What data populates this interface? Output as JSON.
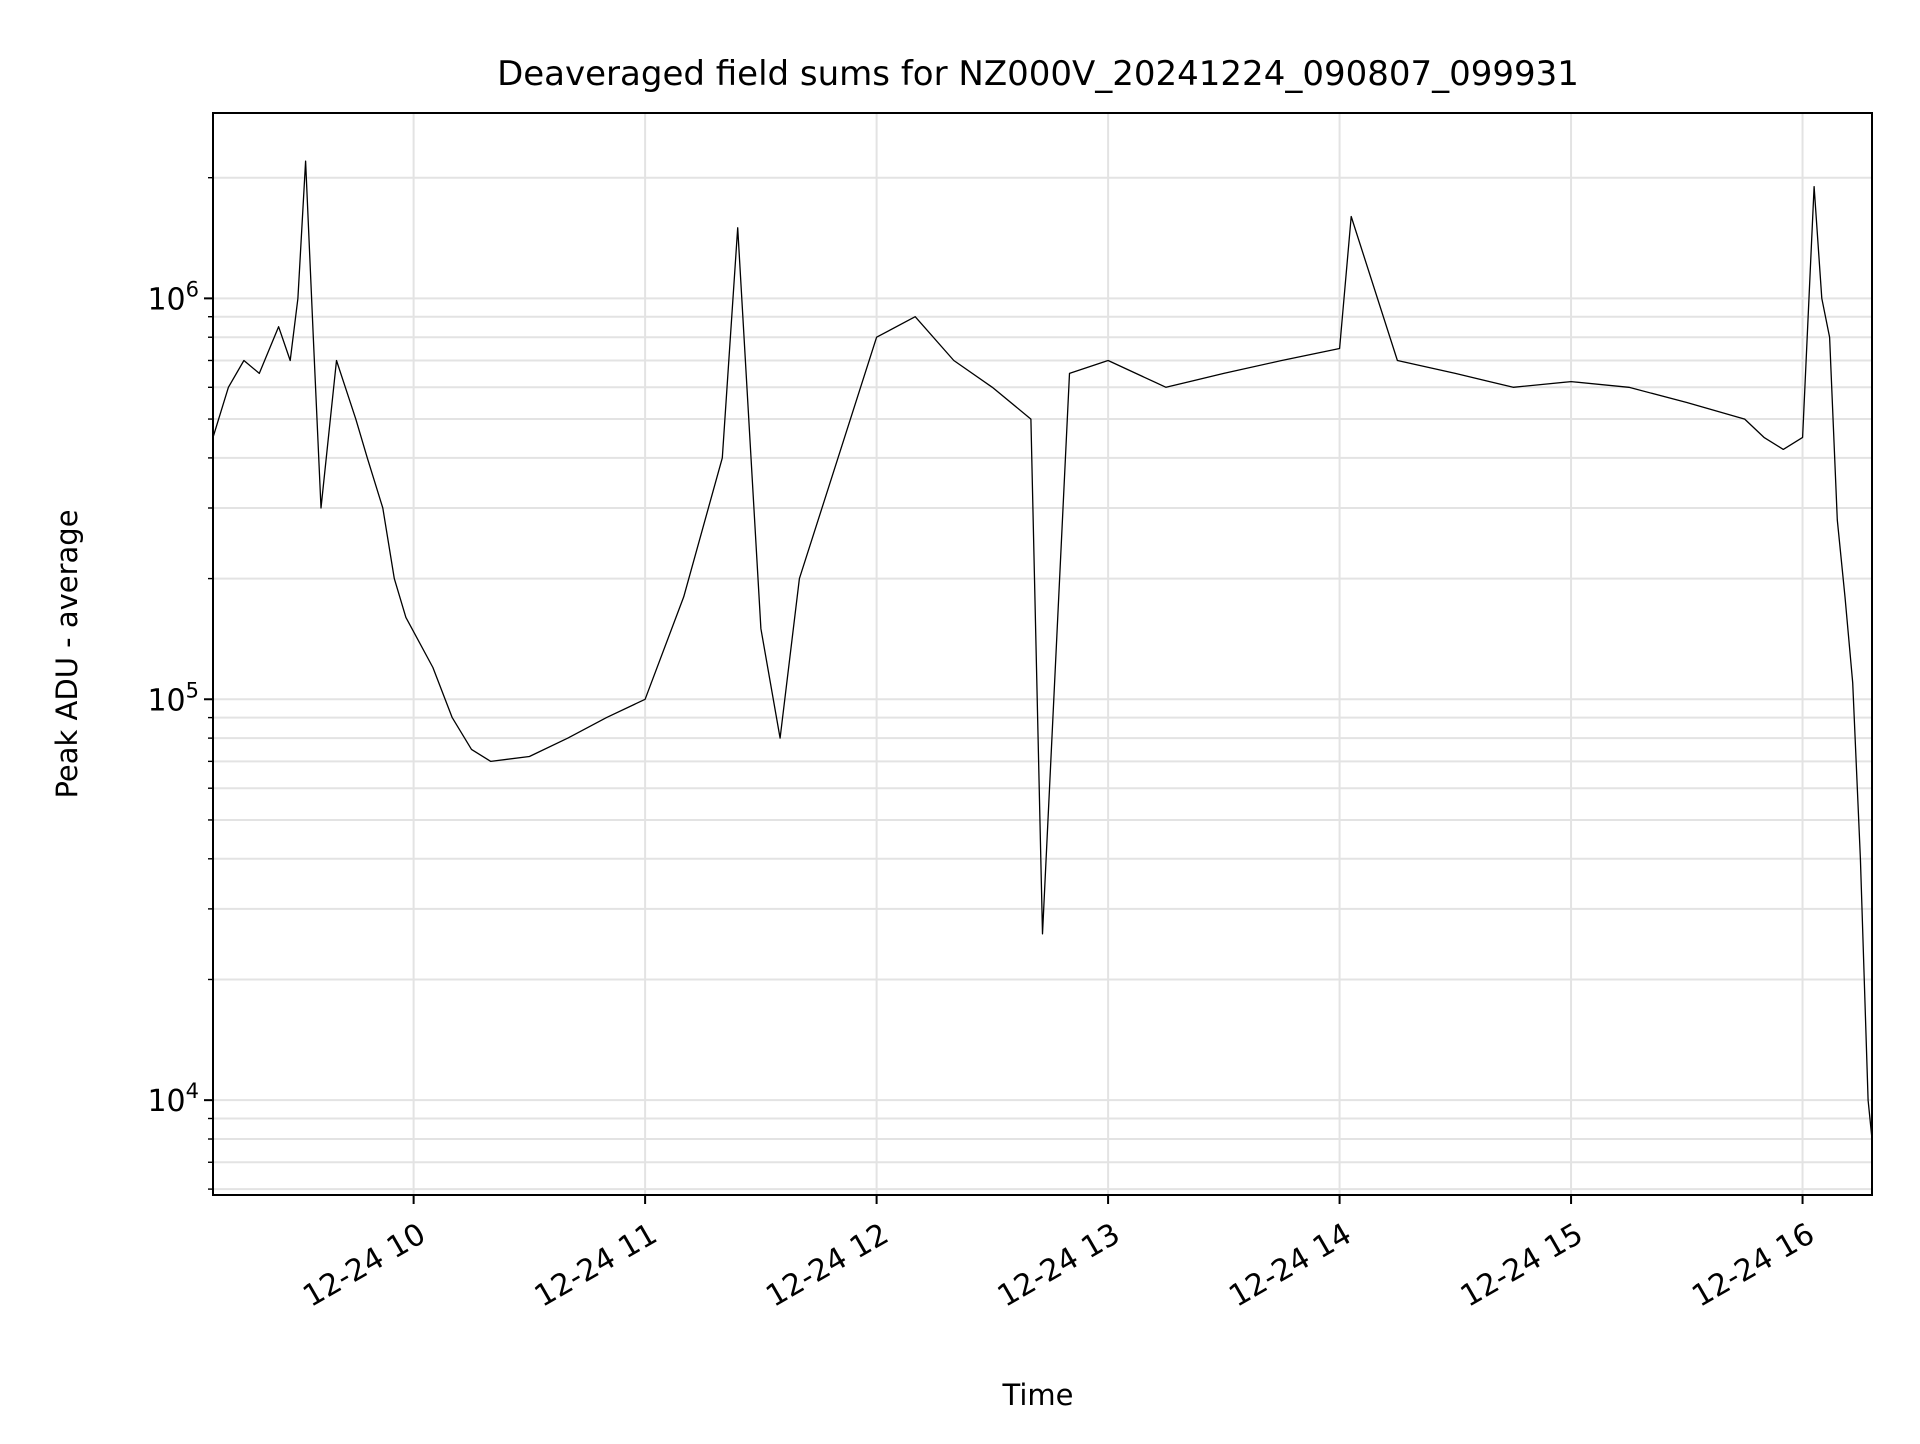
{
  "chart_data": {
    "type": "line",
    "title": "Deaveraged field sums for NZ000V_20241224_090807_099931",
    "xlabel": "Time",
    "ylabel": "Peak ADU - average",
    "yscale": "log",
    "ylim": [
      5800,
      2900000
    ],
    "xlim": [
      "2024-12-24 09:08",
      "2024-12-24 16:18"
    ],
    "grid": true,
    "line_color": "#000000",
    "x_ticks": [
      {
        "value": "2024-12-24 10:00",
        "label": "12-24 10"
      },
      {
        "value": "2024-12-24 11:00",
        "label": "12-24 11"
      },
      {
        "value": "2024-12-24 12:00",
        "label": "12-24 12"
      },
      {
        "value": "2024-12-24 13:00",
        "label": "12-24 13"
      },
      {
        "value": "2024-12-24 14:00",
        "label": "12-24 14"
      },
      {
        "value": "2024-12-24 15:00",
        "label": "12-24 15"
      },
      {
        "value": "2024-12-24 16:00",
        "label": "12-24 16"
      }
    ],
    "y_ticks": [
      {
        "value": 10000,
        "base": "10",
        "exp": "4"
      },
      {
        "value": 100000,
        "base": "10",
        "exp": "5"
      },
      {
        "value": 1000000,
        "base": "10",
        "exp": "6"
      }
    ],
    "series": [
      {
        "x": [
          "2024-12-24 09:08",
          "2024-12-24 09:12",
          "2024-12-24 09:16",
          "2024-12-24 09:20",
          "2024-12-24 09:25",
          "2024-12-24 09:28",
          "2024-12-24 09:30",
          "2024-12-24 09:32",
          "2024-12-24 09:34",
          "2024-12-24 09:36",
          "2024-12-24 09:40",
          "2024-12-24 09:45",
          "2024-12-24 09:48",
          "2024-12-24 09:52",
          "2024-12-24 09:55",
          "2024-12-24 09:58",
          "2024-12-24 10:05",
          "2024-12-24 10:10",
          "2024-12-24 10:15",
          "2024-12-24 10:20",
          "2024-12-24 10:30",
          "2024-12-24 10:40",
          "2024-12-24 10:50",
          "2024-12-24 11:00",
          "2024-12-24 11:10",
          "2024-12-24 11:20",
          "2024-12-24 11:24",
          "2024-12-24 11:30",
          "2024-12-24 11:35",
          "2024-12-24 11:40",
          "2024-12-24 11:50",
          "2024-12-24 12:00",
          "2024-12-24 12:10",
          "2024-12-24 12:20",
          "2024-12-24 12:30",
          "2024-12-24 12:40",
          "2024-12-24 12:43",
          "2024-12-24 12:50",
          "2024-12-24 13:00",
          "2024-12-24 13:15",
          "2024-12-24 13:30",
          "2024-12-24 13:45",
          "2024-12-24 14:00",
          "2024-12-24 14:03",
          "2024-12-24 14:15",
          "2024-12-24 14:30",
          "2024-12-24 14:45",
          "2024-12-24 15:00",
          "2024-12-24 15:15",
          "2024-12-24 15:30",
          "2024-12-24 15:45",
          "2024-12-24 15:50",
          "2024-12-24 15:55",
          "2024-12-24 16:00",
          "2024-12-24 16:03",
          "2024-12-24 16:05",
          "2024-12-24 16:07",
          "2024-12-24 16:09",
          "2024-12-24 16:11",
          "2024-12-24 16:13",
          "2024-12-24 16:15",
          "2024-12-24 16:17",
          "2024-12-24 16:18"
        ],
        "y": [
          450000,
          600000,
          700000,
          650000,
          850000,
          700000,
          1000000,
          2200000,
          800000,
          300000,
          700000,
          500000,
          400000,
          300000,
          200000,
          160000,
          120000,
          90000,
          75000,
          70000,
          72000,
          80000,
          90000,
          100000,
          180000,
          400000,
          1500000,
          150000,
          80000,
          200000,
          400000,
          800000,
          900000,
          700000,
          600000,
          500000,
          26000,
          650000,
          700000,
          600000,
          650000,
          700000,
          750000,
          1600000,
          700000,
          650000,
          600000,
          620000,
          600000,
          550000,
          500000,
          450000,
          420000,
          450000,
          1900000,
          1000000,
          800000,
          280000,
          180000,
          110000,
          40000,
          10000,
          8000
        ]
      }
    ]
  }
}
